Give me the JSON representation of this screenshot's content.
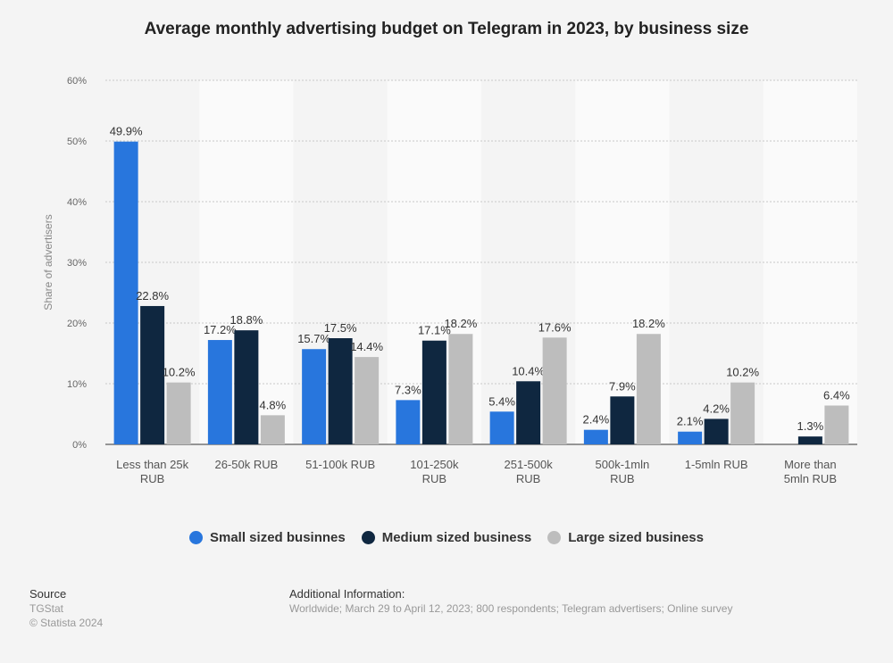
{
  "chart_data": {
    "type": "bar",
    "title": "Average monthly advertising budget on Telegram in 2023, by business size",
    "xlabel": "",
    "ylabel": "Share of advertisers",
    "ylim": [
      0,
      60
    ],
    "yticks": [
      "0%",
      "10%",
      "20%",
      "30%",
      "40%",
      "50%",
      "60%"
    ],
    "grid": true,
    "legend_position": "bottom",
    "categories": [
      [
        "Less than 25k",
        "RUB"
      ],
      [
        "26-50k RUB"
      ],
      [
        "51-100k RUB"
      ],
      [
        "101-250k",
        "RUB"
      ],
      [
        "251-500k",
        "RUB"
      ],
      [
        "500k-1mln",
        "RUB"
      ],
      [
        "1-5mln RUB"
      ],
      [
        "More than",
        "5mln RUB"
      ]
    ],
    "series": [
      {
        "name": "Small sized businnes",
        "color": "#2876dd",
        "values": [
          49.9,
          17.2,
          15.7,
          7.3,
          5.4,
          2.4,
          2.1,
          null
        ]
      },
      {
        "name": "Medium sized business",
        "color": "#0f2740",
        "values": [
          22.8,
          18.8,
          17.5,
          17.1,
          10.4,
          7.9,
          4.2,
          1.3
        ]
      },
      {
        "name": "Large sized business",
        "color": "#bdbdbd",
        "values": [
          10.2,
          4.8,
          14.4,
          18.2,
          17.6,
          18.2,
          10.2,
          6.4
        ]
      }
    ]
  },
  "footer": {
    "source_heading": "Source",
    "source": "TGStat",
    "copyright": "© Statista 2024",
    "info_heading": "Additional Information:",
    "info": "Worldwide; March 29 to April 12, 2023; 800 respondents; Telegram advertisers; Online survey"
  }
}
